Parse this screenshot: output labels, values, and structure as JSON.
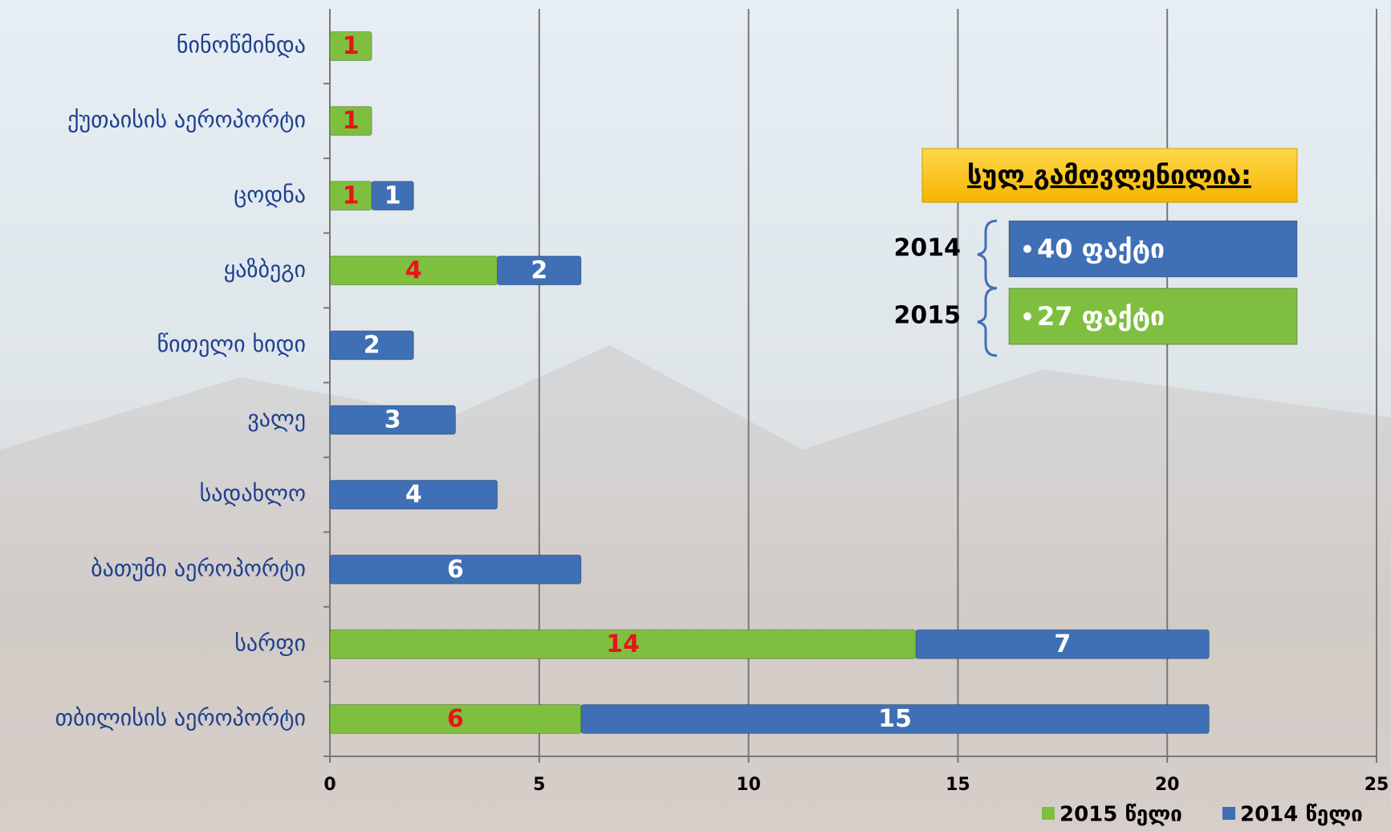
{
  "chart_data": {
    "type": "stacked-bar-horizontal",
    "categories": [
      "ნინოწმინდა",
      "ქუთაისის აეროპორტი",
      "ცოდნა",
      "ყაზბეგი",
      "წითელი ხიდი",
      "ვალე",
      "სადახლო",
      "ბათუმი აეროპორტი",
      "სარფი",
      "თბილისის აეროპორტი"
    ],
    "series": [
      {
        "name": "2015 წელი",
        "color": "#7fbf3f",
        "label_color": "#e8141c",
        "values": [
          1,
          1,
          1,
          4,
          null,
          null,
          null,
          null,
          14,
          6
        ]
      },
      {
        "name": "2014 წელი",
        "color": "#3f6fb5",
        "label_color": "#ffffff",
        "values": [
          null,
          null,
          1,
          2,
          2,
          3,
          4,
          6,
          7,
          15
        ]
      }
    ],
    "xlim": [
      0,
      25
    ],
    "xticks": [
      0,
      5,
      10,
      15,
      20,
      25
    ],
    "grid": true,
    "legend": "bottom-right",
    "summary": {
      "title": "სულ გამოვლენილია:",
      "rows": [
        {
          "year": "2014",
          "text": "40 ფაქტი",
          "color": "#3f6fb5"
        },
        {
          "year": "2015",
          "text": "27 ფაქტი",
          "color": "#7fbf3f"
        }
      ]
    }
  }
}
